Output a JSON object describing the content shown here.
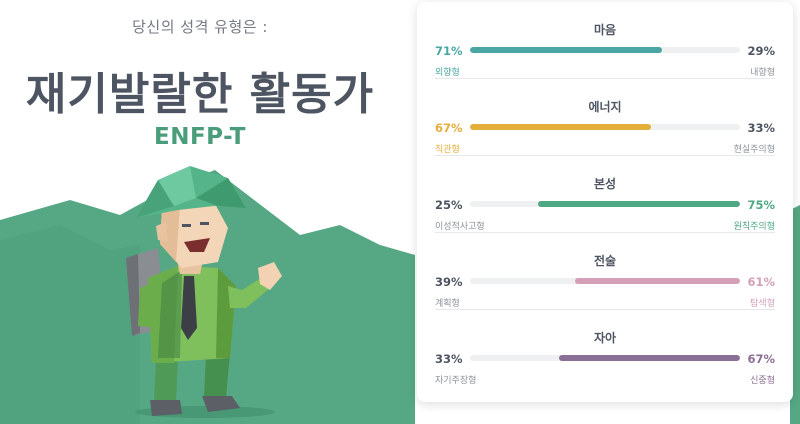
{
  "header": {
    "intro": "당신의 성격 유형은 :",
    "type_name": "재기발랄한 활동가",
    "type_code": "ENFP-T"
  },
  "colors": {
    "mind": "#4aa6a3",
    "energy": "#e4ae3a",
    "nature": "#4ea883",
    "tactics": "#d3a0b8",
    "identity": "#8b6f96",
    "hills": "#56a884"
  },
  "traits": [
    {
      "title": "마음",
      "left_pct": "71%",
      "right_pct": "29%",
      "left_label": "외향형",
      "right_label": "내향형",
      "fill_side": "left",
      "fill_value": 71
    },
    {
      "title": "에너지",
      "left_pct": "67%",
      "right_pct": "33%",
      "left_label": "직관형",
      "right_label": "현실주의형",
      "fill_side": "left",
      "fill_value": 67
    },
    {
      "title": "본성",
      "left_pct": "25%",
      "right_pct": "75%",
      "left_label": "이성적사고형",
      "right_label": "원칙주의형",
      "fill_side": "right",
      "fill_value": 75
    },
    {
      "title": "전술",
      "left_pct": "39%",
      "right_pct": "61%",
      "left_label": "계획형",
      "right_label": "탐색형",
      "fill_side": "right",
      "fill_value": 61
    },
    {
      "title": "자아",
      "left_pct": "33%",
      "right_pct": "67%",
      "left_label": "자기주장형",
      "right_label": "신중형",
      "fill_side": "right",
      "fill_value": 67
    }
  ]
}
